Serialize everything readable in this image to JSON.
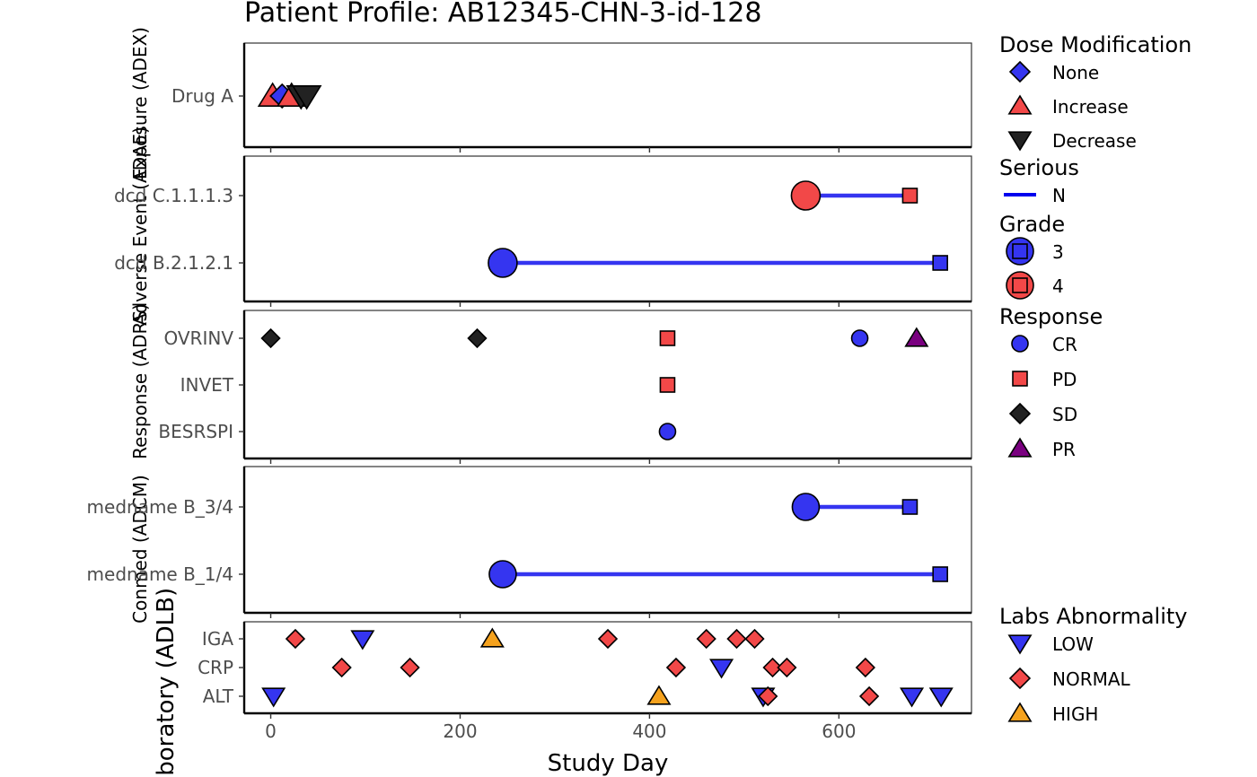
{
  "chart_data": {
    "type": "scatter",
    "title": "Patient Profile:  AB12345-CHN-3-id-128",
    "xlabel": "Study Day",
    "xlim": [
      -28,
      740
    ],
    "xticks": [
      0,
      200,
      400,
      600
    ],
    "grid": false,
    "panels": [
      {
        "label": "Exposure (ADEX)",
        "rows": [
          "Drug A"
        ],
        "points": [
          {
            "row": "Drug A",
            "x": 2,
            "shape": "triangle-up",
            "color": "red",
            "size": 14
          },
          {
            "row": "Drug A",
            "x": 12,
            "shape": "diamond",
            "color": "blue",
            "size": 13
          },
          {
            "row": "Drug A",
            "x": 22,
            "shape": "triangle-up",
            "color": "red",
            "size": 14
          },
          {
            "row": "Drug A",
            "x": 32,
            "shape": "triangle-down",
            "color": "black",
            "size": 14
          },
          {
            "row": "Drug A",
            "x": 38,
            "shape": "triangle-down",
            "color": "black",
            "size": 14
          }
        ]
      },
      {
        "label": "Adverse Event (ADAE)",
        "rows": [
          "dcd C.1.1.1.3",
          "dcd B.2.1.2.1"
        ],
        "segments": [
          {
            "row": "dcd C.1.1.1.3",
            "x1": 565,
            "x2": 675,
            "color": "blue"
          },
          {
            "row": "dcd B.2.1.2.1",
            "x1": 245,
            "x2": 707,
            "color": "blue"
          }
        ],
        "points": [
          {
            "row": "dcd C.1.1.1.3",
            "x": 565,
            "shape": "circle",
            "color": "red",
            "size": 16
          },
          {
            "row": "dcd C.1.1.1.3",
            "x": 675,
            "shape": "square",
            "color": "red",
            "size": 8
          },
          {
            "row": "dcd B.2.1.2.1",
            "x": 245,
            "shape": "circle",
            "color": "blue",
            "size": 16
          },
          {
            "row": "dcd B.2.1.2.1",
            "x": 707,
            "shape": "square",
            "color": "blue",
            "size": 8
          }
        ]
      },
      {
        "label": "Response (ADRS)",
        "rows": [
          "OVRINV",
          "INVET",
          "BESRSPI"
        ],
        "points": [
          {
            "row": "OVRINV",
            "x": 0,
            "shape": "diamond",
            "color": "black",
            "size": 10
          },
          {
            "row": "OVRINV",
            "x": 218,
            "shape": "diamond",
            "color": "black",
            "size": 10
          },
          {
            "row": "OVRINV",
            "x": 419,
            "shape": "square",
            "color": "red",
            "size": 8
          },
          {
            "row": "OVRINV",
            "x": 622,
            "shape": "circle",
            "color": "blue",
            "size": 9
          },
          {
            "row": "OVRINV",
            "x": 682,
            "shape": "triangle-up",
            "color": "purple",
            "size": 11
          },
          {
            "row": "INVET",
            "x": 419,
            "shape": "square",
            "color": "red",
            "size": 8
          },
          {
            "row": "BESRSPI",
            "x": 419,
            "shape": "circle",
            "color": "blue",
            "size": 9
          }
        ]
      },
      {
        "label": "Conmed (ADCM)",
        "rows": [
          "medname B_3/4",
          "medname B_1/4"
        ],
        "segments": [
          {
            "row": "medname B_3/4",
            "x1": 565,
            "x2": 675,
            "color": "blue2"
          },
          {
            "row": "medname B_1/4",
            "x1": 245,
            "x2": 707,
            "color": "blue2"
          }
        ],
        "points": [
          {
            "row": "medname B_3/4",
            "x": 565,
            "shape": "circle",
            "color": "blue",
            "size": 15
          },
          {
            "row": "medname B_3/4",
            "x": 675,
            "shape": "square",
            "color": "blue",
            "size": 8
          },
          {
            "row": "medname B_1/4",
            "x": 245,
            "shape": "circle",
            "color": "blue",
            "size": 15
          },
          {
            "row": "medname B_1/4",
            "x": 707,
            "shape": "square",
            "color": "blue",
            "size": 8
          }
        ]
      },
      {
        "label": "Laboratory (ADLB)",
        "rows": [
          "IGA",
          "CRP",
          "ALT"
        ],
        "points": [
          {
            "row": "IGA",
            "x": 26,
            "shape": "diamond",
            "color": "red",
            "size": 10
          },
          {
            "row": "IGA",
            "x": 97,
            "shape": "triangle-down",
            "color": "blue",
            "size": 11
          },
          {
            "row": "IGA",
            "x": 234,
            "shape": "triangle-up",
            "color": "orange",
            "size": 11
          },
          {
            "row": "IGA",
            "x": 356,
            "shape": "diamond",
            "color": "red",
            "size": 10
          },
          {
            "row": "IGA",
            "x": 460,
            "shape": "diamond",
            "color": "red",
            "size": 10
          },
          {
            "row": "IGA",
            "x": 492,
            "shape": "diamond",
            "color": "red",
            "size": 10
          },
          {
            "row": "IGA",
            "x": 511,
            "shape": "diamond",
            "color": "red",
            "size": 10
          },
          {
            "row": "CRP",
            "x": 75,
            "shape": "diamond",
            "color": "red",
            "size": 10
          },
          {
            "row": "CRP",
            "x": 147,
            "shape": "diamond",
            "color": "red",
            "size": 10
          },
          {
            "row": "CRP",
            "x": 428,
            "shape": "diamond",
            "color": "red",
            "size": 10
          },
          {
            "row": "CRP",
            "x": 476,
            "shape": "triangle-down",
            "color": "blue",
            "size": 11
          },
          {
            "row": "CRP",
            "x": 530,
            "shape": "diamond",
            "color": "red",
            "size": 10
          },
          {
            "row": "CRP",
            "x": 545,
            "shape": "diamond",
            "color": "red",
            "size": 10
          },
          {
            "row": "CRP",
            "x": 628,
            "shape": "diamond",
            "color": "red",
            "size": 10
          },
          {
            "row": "ALT",
            "x": 3,
            "shape": "triangle-down",
            "color": "blue",
            "size": 11
          },
          {
            "row": "ALT",
            "x": 410,
            "shape": "triangle-up",
            "color": "orange",
            "size": 11
          },
          {
            "row": "ALT",
            "x": 520,
            "shape": "triangle-down",
            "color": "blue",
            "size": 11
          },
          {
            "row": "ALT",
            "x": 525,
            "shape": "diamond",
            "color": "red",
            "size": 10
          },
          {
            "row": "ALT",
            "x": 632,
            "shape": "diamond",
            "color": "red",
            "size": 10
          },
          {
            "row": "ALT",
            "x": 677,
            "shape": "triangle-down",
            "color": "blue",
            "size": 11
          },
          {
            "row": "ALT",
            "x": 708,
            "shape": "triangle-down",
            "color": "blue",
            "size": 11
          }
        ]
      }
    ],
    "legends": [
      {
        "title": "Dose Modification",
        "entries": [
          {
            "label": "None",
            "shape": "diamond",
            "color": "blue"
          },
          {
            "label": "Increase",
            "shape": "triangle-up",
            "color": "red"
          },
          {
            "label": "Decrease",
            "shape": "triangle-down",
            "color": "black"
          }
        ]
      },
      {
        "title": "Serious",
        "entries": [
          {
            "label": "N",
            "shape": "line",
            "color": "line_blue"
          }
        ]
      },
      {
        "title": "Grade",
        "entries": [
          {
            "label": "3",
            "shape": "circle-square",
            "color": "blue"
          },
          {
            "label": "4",
            "shape": "circle-square",
            "color": "red"
          }
        ]
      },
      {
        "title": "Response",
        "entries": [
          {
            "label": "CR",
            "shape": "circle",
            "color": "blue"
          },
          {
            "label": "PD",
            "shape": "square",
            "color": "red"
          },
          {
            "label": "SD",
            "shape": "diamond",
            "color": "black"
          },
          {
            "label": "PR",
            "shape": "triangle-up",
            "color": "purple"
          }
        ]
      },
      {
        "title": "Labs Abnormality",
        "entries": [
          {
            "label": "LOW",
            "shape": "triangle-down",
            "color": "blue"
          },
          {
            "label": "NORMAL",
            "shape": "diamond",
            "color": "red"
          },
          {
            "label": "HIGH",
            "shape": "triangle-up",
            "color": "orange"
          }
        ]
      }
    ]
  },
  "colors": {
    "blue": "#3535F0",
    "blue2": "#3535F0",
    "red": "#F24848",
    "black": "#222222",
    "purple": "#7A0080",
    "orange": "#F5A21E",
    "line_blue": "#0000EE"
  }
}
